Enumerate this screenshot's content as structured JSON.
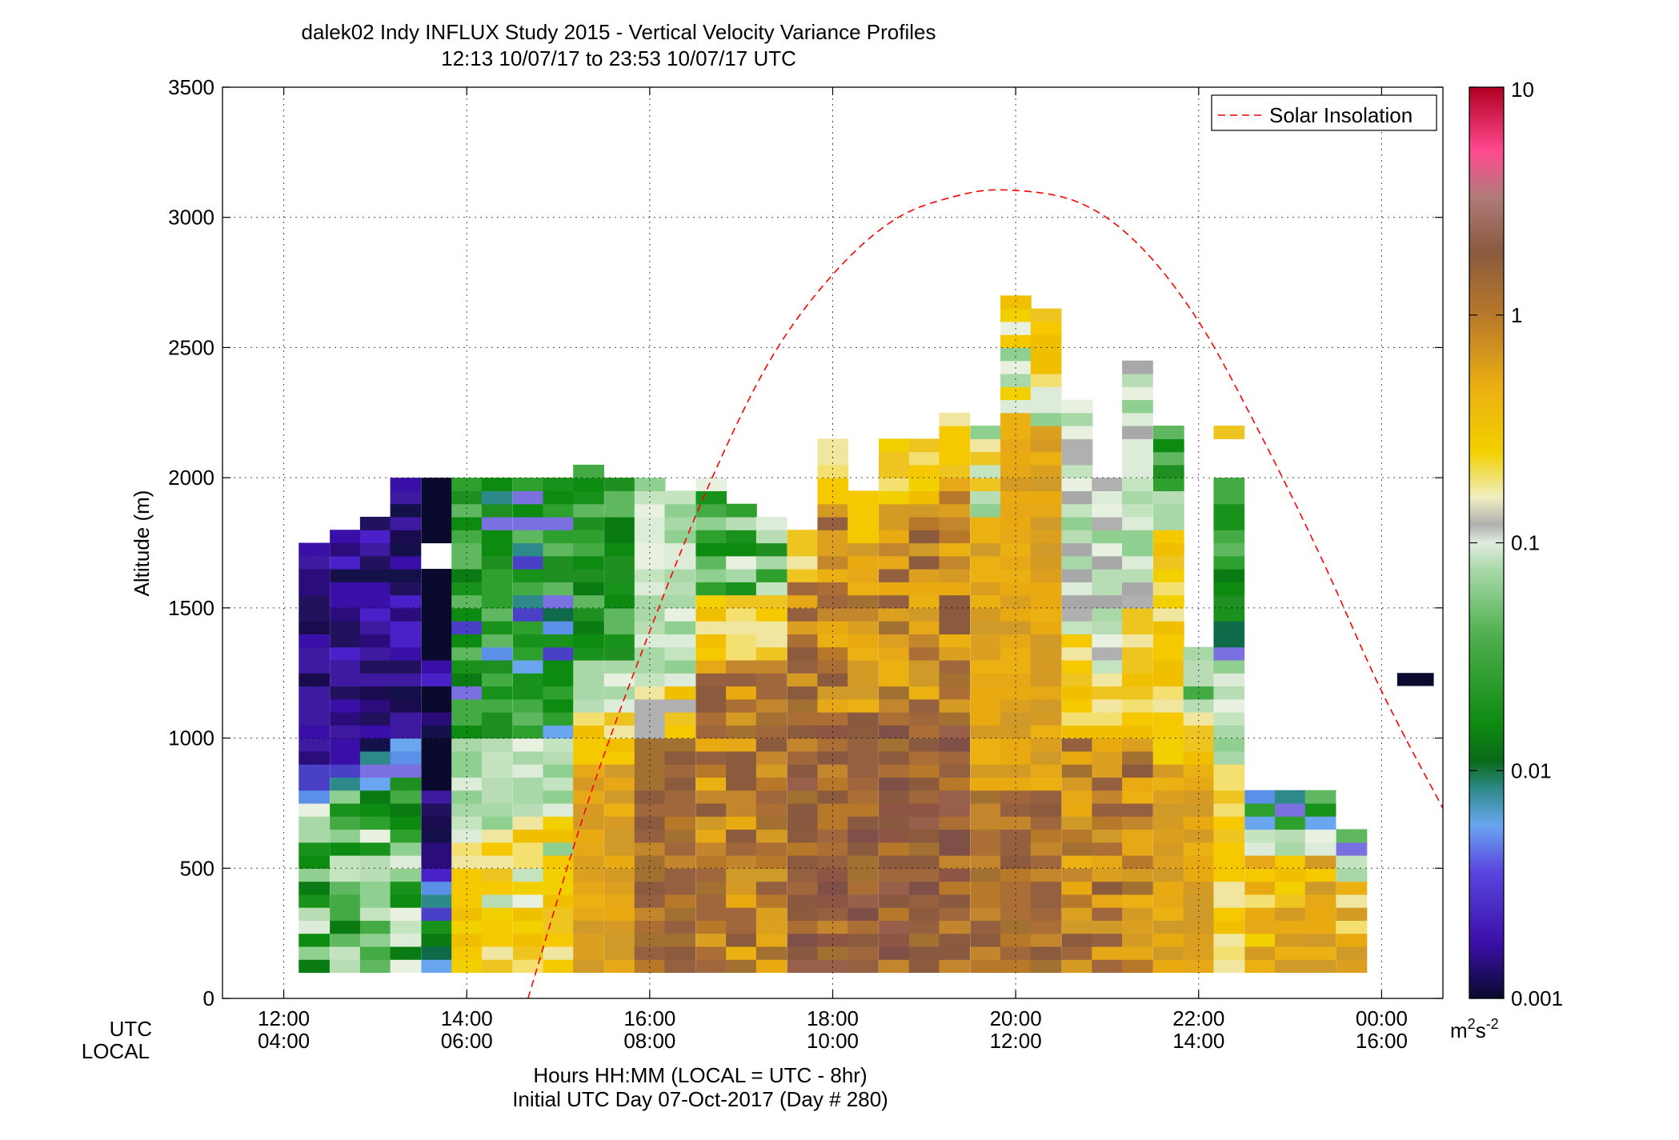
{
  "title_line1": "dalek02 Indy INFLUX Study 2015 - Vertical Velocity Variance Profiles",
  "title_line2": "12:13 10/07/17 to 23:53 10/07/17  UTC",
  "xlabel": "Hours HH:MM  (LOCAL = UTC - 8hr)",
  "xlabel2": "Initial UTC Day 07-Oct-2017 (Day # 280)",
  "ylabel": "Altitude (m)",
  "row_labels": {
    "utc": "UTC",
    "local": "LOCAL"
  },
  "legend": {
    "label": "Solar Insolation",
    "color": "#ff0000"
  },
  "colorbar": {
    "unit_base": "m",
    "unit_sup1": "2",
    "unit_mid": "s",
    "unit_sup2": "-2",
    "tick_labels": [
      "0.001",
      "0.01",
      "0.1",
      "1",
      "10"
    ],
    "tick_values": [
      0.001,
      0.01,
      0.1,
      1,
      10
    ]
  },
  "chart_data": {
    "type": "heatmap",
    "title": "dalek02 Indy INFLUX Study 2015 - Vertical Velocity Variance Profiles",
    "subtitle": "12:13 10/07/17 to 23:53 10/07/17  UTC",
    "xlabel": "Hours HH:MM  (LOCAL = UTC - 8hr)",
    "ylabel": "Altitude (m)",
    "x_unit": "hours UTC",
    "xlim": [
      11.33,
      24.67
    ],
    "ylim": [
      0,
      3500
    ],
    "grid": true,
    "legend_placement": "top-right",
    "color_scale": "log",
    "clim": [
      0.001,
      10
    ],
    "x_ticks": [
      {
        "value": 12,
        "utc": "12:00",
        "local": "04:00"
      },
      {
        "value": 14,
        "utc": "14:00",
        "local": "06:00"
      },
      {
        "value": 16,
        "utc": "16:00",
        "local": "08:00"
      },
      {
        "value": 18,
        "utc": "18:00",
        "local": "10:00"
      },
      {
        "value": 20,
        "utc": "20:00",
        "local": "12:00"
      },
      {
        "value": 22,
        "utc": "22:00",
        "local": "14:00"
      },
      {
        "value": 24,
        "utc": "00:00",
        "local": "16:00"
      }
    ],
    "y_ticks": [
      0,
      500,
      1000,
      1500,
      2000,
      2500,
      3000,
      3500
    ],
    "y_tick_labels": [
      "0",
      "500",
      "1000",
      "1500",
      "2000",
      "2500",
      "3000",
      "3500"
    ],
    "profile_interval_h": 0.3333,
    "range_gate_m": 50,
    "first_gate_m": 100,
    "profile_times_utc": [
      12.33,
      12.67,
      13,
      13.33,
      13.67,
      14,
      14.33,
      14.67,
      15,
      15.33,
      15.67,
      16,
      16.33,
      16.67,
      17,
      17.33,
      17.67,
      18,
      18.33,
      18.67,
      19,
      19.33,
      19.67,
      20,
      20.33,
      20.67,
      21,
      21.33,
      21.67,
      22,
      22.33,
      22.67,
      23,
      23.33,
      23.67
    ],
    "profile_top_m": [
      1750,
      1800,
      1850,
      2000,
      2000,
      2000,
      2000,
      2000,
      2000,
      2050,
      2000,
      2000,
      1950,
      2000,
      1900,
      1850,
      1800,
      2150,
      1950,
      2150,
      2150,
      2250,
      2200,
      2700,
      2650,
      2300,
      2000,
      2450,
      2200,
      1350,
      2200,
      800,
      800,
      800,
      650
    ],
    "gap_cells": [
      {
        "t": 13.67,
        "alt_m": 1650
      },
      {
        "t": 13.67,
        "alt_m": 1700
      }
    ],
    "solar_insolation": {
      "name": "Solar Insolation",
      "style": "dashed",
      "t_utc": [
        14.67,
        15.33,
        16,
        16.67,
        17.33,
        18,
        18.67,
        19.33,
        19.9,
        20.67,
        21.33,
        22,
        22.67,
        23.33,
        24,
        24.67
      ],
      "relative_altitude_m": [
        0,
        760,
        1410,
        1990,
        2460,
        2780,
        2990,
        3080,
        3105,
        3060,
        2900,
        2600,
        2170,
        1700,
        1180,
        730
      ]
    }
  }
}
